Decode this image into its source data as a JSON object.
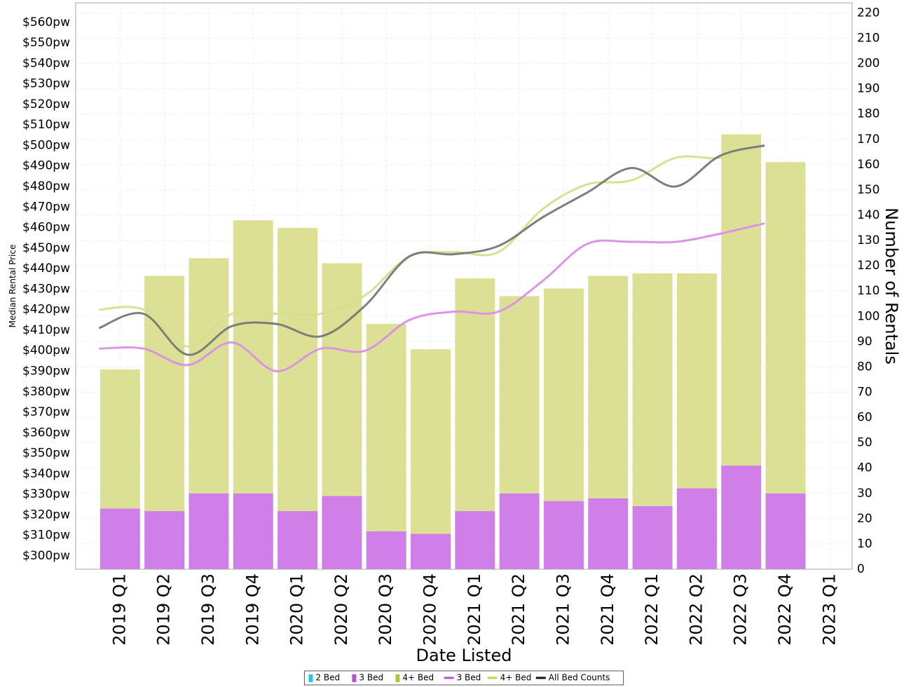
{
  "chart_data": {
    "type": "bar",
    "xlabel": "Date Listed",
    "ylabel_left": "Median Rental Price",
    "ylabel_right": "Number of Rentals",
    "categories": [
      "2019 Q1",
      "2019 Q2",
      "2019 Q3",
      "2019 Q4",
      "2020 Q1",
      "2020 Q2",
      "2020 Q3",
      "2020 Q4",
      "2021 Q1",
      "2021 Q2",
      "2021 Q3",
      "2021 Q4",
      "2022 Q1",
      "2022 Q2",
      "2022 Q3",
      "2022 Q4",
      "2023 Q1"
    ],
    "left_axis": {
      "min": 300,
      "max": 560,
      "step": 10,
      "plot_min": 293.5,
      "plot_max": 569.5,
      "tick_prefix": "$",
      "tick_suffix": "pw"
    },
    "right_axis": {
      "min": 0,
      "max": 220,
      "step": 10,
      "plot_max": 224
    },
    "bar_series": [
      {
        "name": "2 Bed",
        "color": "#22c9e0",
        "values": [
          0,
          0,
          0,
          0,
          0,
          0,
          0,
          0,
          0,
          0,
          0,
          0,
          0,
          0,
          0,
          0,
          null
        ]
      },
      {
        "name": "3 Bed",
        "color": "#d07fe8",
        "values": [
          24,
          23,
          30,
          30,
          23,
          29,
          15,
          14,
          23,
          30,
          27,
          28,
          25,
          32,
          41,
          30,
          null
        ]
      },
      {
        "name": "4+ Bed",
        "color": "#dce095",
        "values": [
          55,
          93,
          93,
          108,
          112,
          92,
          82,
          73,
          92,
          78,
          84,
          88,
          92,
          85,
          131,
          131,
          null
        ]
      }
    ],
    "line_series": [
      {
        "name": "3 Bed",
        "color": "#d98fe6",
        "values": [
          401,
          401,
          393,
          404,
          390,
          401,
          400,
          415,
          419,
          419,
          434,
          452,
          453,
          453,
          457,
          462,
          null
        ]
      },
      {
        "name": "4+ Bed",
        "color": "#d4df8c",
        "values": [
          420,
          420,
          402,
          418,
          418,
          418,
          427,
          446,
          448,
          448,
          469,
          481,
          483,
          494,
          494,
          500,
          null
        ]
      },
      {
        "name": "All Bed Counts",
        "color": "#777777",
        "values": [
          411,
          418,
          398,
          412,
          413,
          407,
          422,
          446,
          447,
          451,
          465,
          477,
          489,
          480,
          495,
          500,
          null
        ]
      }
    ],
    "legend": {
      "position": "bottom-center",
      "items": [
        {
          "label": "2 Bed",
          "kind": "bar",
          "color": "#22c9e0"
        },
        {
          "label": "3 Bed",
          "kind": "bar",
          "color": "#b84fd8"
        },
        {
          "label": "4+ Bed",
          "kind": "bar",
          "color": "#b5c43a"
        },
        {
          "label": "3 Bed",
          "kind": "line",
          "color": "#b84fd8"
        },
        {
          "label": "4+ Bed",
          "kind": "line",
          "color": "#c6d04a"
        },
        {
          "label": "All Bed Counts",
          "kind": "line",
          "color": "#111111"
        }
      ]
    },
    "grid": true
  }
}
